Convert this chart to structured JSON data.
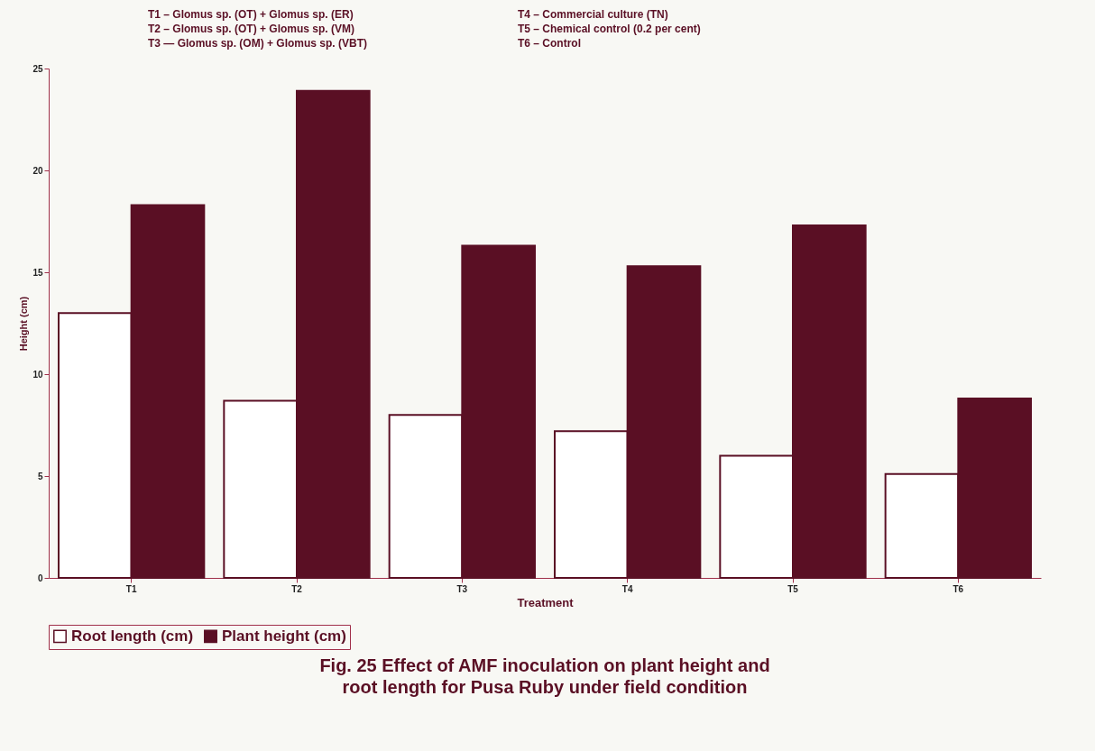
{
  "chart_data": {
    "type": "bar",
    "title": "Fig. 25  Effect of AMF inoculation on plant height and root length for Pusa Ruby under field condition",
    "xlabel": "Treatment",
    "ylabel": "Height (cm)",
    "categories": [
      "T1",
      "T2",
      "T3",
      "T4",
      "T5",
      "T6"
    ],
    "series": [
      {
        "name": "Root length (cm)",
        "color": "#ffffff",
        "values": [
          13,
          8.7,
          8.0,
          7.2,
          6.0,
          5.1
        ]
      },
      {
        "name": "Plant height (cm)",
        "color": "#5a0f24",
        "values": [
          18.3,
          23.9,
          16.3,
          15.3,
          17.3,
          8.8
        ]
      }
    ],
    "ylim": [
      0,
      25
    ],
    "yticks": [
      0,
      5,
      10,
      15,
      20,
      25
    ],
    "grid": false,
    "legend": "bottom",
    "annotations": [
      "T1 – Glomus sp. (OT) + Glomus sp. (ER)",
      "T2 – Glomus sp. (OT) + Glomus sp. (VM)",
      "T3 — Glomus sp. (OM) + Glomus sp. (VBT)",
      "T4 –  Commercial culture (TN)",
      "T5 – Chemical control (0.2 per cent)",
      "T6 – Control"
    ]
  }
}
